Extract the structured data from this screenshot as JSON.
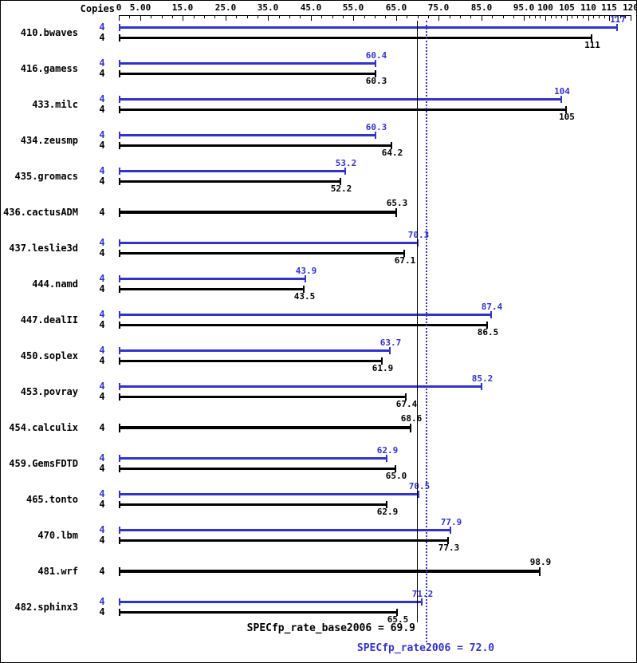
{
  "chart_data": {
    "type": "bar",
    "orientation": "horizontal",
    "copies_header": "Copies",
    "colors": {
      "peak": "#3333cc",
      "base": "#000000"
    },
    "x_axis": {
      "range": [
        0,
        120
      ],
      "ticks": [
        {
          "value": 0,
          "label": "0"
        },
        {
          "value": 5,
          "label": "5.00"
        },
        {
          "value": 15,
          "label": "15.0"
        },
        {
          "value": 25,
          "label": "25.0"
        },
        {
          "value": 35,
          "label": "35.0"
        },
        {
          "value": 45,
          "label": "45.0"
        },
        {
          "value": 55,
          "label": "55.0"
        },
        {
          "value": 65,
          "label": "65.0"
        },
        {
          "value": 75,
          "label": "75.0"
        },
        {
          "value": 85,
          "label": "85.0"
        },
        {
          "value": 95,
          "label": "95.0"
        },
        {
          "value": 100,
          "label": "100"
        },
        {
          "value": 105,
          "label": "105"
        },
        {
          "value": 110,
          "label": "110"
        },
        {
          "value": 115,
          "label": "115"
        }
      ],
      "last_tick": {
        "value": 120,
        "label": "120"
      },
      "minor_step_low": 2.5,
      "minor_step_high": 1.25,
      "minor_break": 95
    },
    "benchmarks": [
      {
        "name": "410.bwaves",
        "peak_copies": "4",
        "base_copies": "4",
        "peak": 117,
        "peak_label": "117",
        "base": 111,
        "base_label": "111"
      },
      {
        "name": "416.gamess",
        "peak_copies": "4",
        "base_copies": "4",
        "peak": 60.4,
        "peak_label": "60.4",
        "base": 60.3,
        "base_label": "60.3"
      },
      {
        "name": "433.milc",
        "peak_copies": "4",
        "base_copies": "4",
        "peak": 104,
        "peak_label": "104",
        "base": 105,
        "base_label": "105"
      },
      {
        "name": "434.zeusmp",
        "peak_copies": "4",
        "base_copies": "4",
        "peak": 60.3,
        "peak_label": "60.3",
        "base": 64.2,
        "base_label": "64.2"
      },
      {
        "name": "435.gromacs",
        "peak_copies": "4",
        "base_copies": "4",
        "peak": 53.2,
        "peak_label": "53.2",
        "base": 52.2,
        "base_label": "52.2"
      },
      {
        "name": "436.cactusADM",
        "base_copies": "4",
        "base_only": true,
        "base": 65.3,
        "base_label": "65.3"
      },
      {
        "name": "437.leslie3d",
        "peak_copies": "4",
        "base_copies": "4",
        "peak": 70.3,
        "peak_label": "70.3",
        "base": 67.1,
        "base_label": "67.1"
      },
      {
        "name": "444.namd",
        "peak_copies": "4",
        "base_copies": "4",
        "peak": 43.9,
        "peak_label": "43.9",
        "base": 43.5,
        "base_label": "43.5"
      },
      {
        "name": "447.dealII",
        "peak_copies": "4",
        "base_copies": "4",
        "peak": 87.4,
        "peak_label": "87.4",
        "base": 86.5,
        "base_label": "86.5"
      },
      {
        "name": "450.soplex",
        "peak_copies": "4",
        "base_copies": "4",
        "peak": 63.7,
        "peak_label": "63.7",
        "base": 61.9,
        "base_label": "61.9"
      },
      {
        "name": "453.povray",
        "peak_copies": "4",
        "base_copies": "4",
        "peak": 85.2,
        "peak_label": "85.2",
        "base": 67.4,
        "base_label": "67.4"
      },
      {
        "name": "454.calculix",
        "base_copies": "4",
        "base_only": true,
        "base": 68.6,
        "base_label": "68.6"
      },
      {
        "name": "459.GemsFDTD",
        "peak_copies": "4",
        "base_copies": "4",
        "peak": 62.9,
        "peak_label": "62.9",
        "base": 65.0,
        "base_label": "65.0"
      },
      {
        "name": "465.tonto",
        "peak_copies": "4",
        "base_copies": "4",
        "peak": 70.5,
        "peak_label": "70.5",
        "base": 62.9,
        "base_label": "62.9"
      },
      {
        "name": "470.lbm",
        "peak_copies": "4",
        "base_copies": "4",
        "peak": 77.9,
        "peak_label": "77.9",
        "base": 77.3,
        "base_label": "77.3"
      },
      {
        "name": "481.wrf",
        "base_copies": "4",
        "base_only": true,
        "base": 98.9,
        "base_label": "98.9"
      },
      {
        "name": "482.sphinx3",
        "peak_copies": "4",
        "base_copies": "4",
        "peak": 71.2,
        "peak_label": "71.2",
        "base": 65.5,
        "base_label": "65.5"
      }
    ],
    "summary": {
      "base_value": 69.9,
      "base_label": "SPECfp_rate_base2006 = 69.9",
      "peak_value": 72.0,
      "peak_label": "SPECfp_rate2006 = 72.0"
    }
  }
}
